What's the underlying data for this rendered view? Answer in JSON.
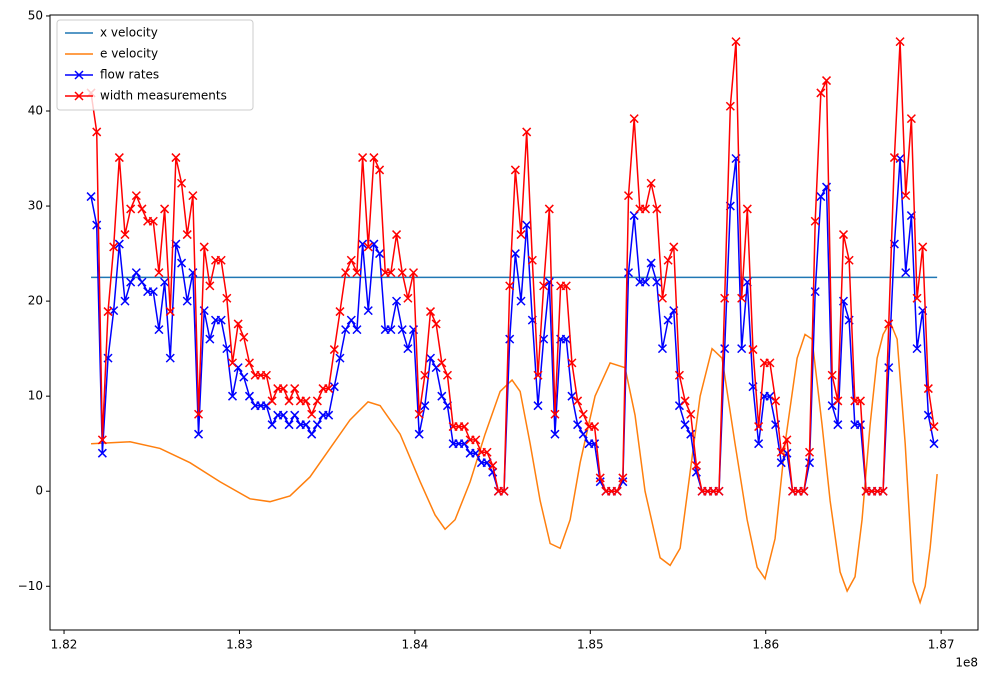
{
  "chart_data": {
    "type": "line",
    "xlim": [
      181920000,
      187210000
    ],
    "ylim": [
      -14.6,
      50.1
    ],
    "xticks": [
      {
        "value": 182000000,
        "label": "1.82"
      },
      {
        "value": 183000000,
        "label": "1.83"
      },
      {
        "value": 184000000,
        "label": "1.84"
      },
      {
        "value": 185000000,
        "label": "1.85"
      },
      {
        "value": 186000000,
        "label": "1.86"
      },
      {
        "value": 187000000,
        "label": "1.87"
      }
    ],
    "yticks": [
      {
        "value": -10,
        "label": "−10"
      },
      0,
      10,
      20,
      30,
      40,
      50
    ],
    "x_offset_text": "1e8",
    "grid": false,
    "legend": "upper left",
    "x": [
      182154000,
      182186250,
      182218500,
      182250750,
      182283000,
      182315250,
      182347500,
      182379750,
      182412000,
      182444250,
      182476500,
      182508750,
      182541000,
      182573250,
      182605500,
      182637750,
      182670000,
      182702250,
      182734500,
      182766750,
      182799000,
      182831250,
      182863500,
      182895750,
      182928000,
      182960250,
      182992500,
      183024750,
      183057000,
      183089250,
      183121500,
      183153750,
      183186000,
      183218250,
      183250500,
      183282750,
      183315000,
      183347250,
      183379500,
      183411750,
      183444000,
      183476250,
      183508500,
      183540750,
      183573000,
      183605250,
      183637500,
      183669750,
      183702000,
      183734250,
      183766500,
      183798750,
      183831000,
      183863250,
      183895500,
      183927750,
      183960000,
      183992250,
      184024500,
      184056750,
      184089000,
      184121250,
      184153500,
      184185750,
      184218000,
      184250250,
      184282500,
      184314750,
      184347000,
      184379250,
      184411500,
      184443750,
      184476000,
      184508250,
      184540500,
      184572750,
      184605000,
      184637250,
      184669500,
      184701750,
      184734000,
      184766250,
      184798500,
      184830750,
      184863000,
      184895250,
      184927500,
      184959750,
      184992000,
      185024250,
      185056500,
      185088750,
      185121000,
      185153250,
      185185500,
      185217750,
      185250000,
      185282250,
      185314500,
      185346750,
      185379000,
      185411250,
      185443500,
      185475750,
      185508000,
      185540250,
      185572500,
      185604750,
      185637000,
      185669250,
      185701500,
      185733750,
      185766000,
      185798250,
      185830500,
      185862750,
      185895000,
      185927250,
      185959500,
      185991750,
      186024000,
      186056250,
      186088500,
      186120750,
      186153000,
      186185250,
      186217500,
      186249750,
      186282000,
      186314250,
      186346500,
      186378750,
      186411000,
      186443250,
      186475500,
      186507750,
      186540000,
      186572250,
      186604500,
      186636750,
      186669000,
      186701250,
      186733500,
      186765750,
      186798000,
      186830250,
      186862500,
      186894750,
      186927000,
      186959250
    ],
    "series": [
      {
        "name": "x velocity",
        "color": "#1f77b4",
        "x": [
          182154000,
          186977000
        ],
        "values": [
          22.5,
          22.5
        ]
      },
      {
        "name": "e velocity",
        "color": "#ff7f0e",
        "x": [
          182154000,
          182376000,
          182547000,
          182718000,
          182889000,
          183060000,
          183174000,
          183288000,
          183402000,
          183516000,
          183630000,
          183733000,
          183802000,
          183916000,
          184030000,
          184115000,
          184172000,
          184229000,
          184315000,
          184400000,
          184486000,
          184554000,
          184600000,
          184657000,
          184714000,
          184771000,
          184828000,
          184885000,
          184942000,
          185027000,
          185113000,
          185198000,
          185255000,
          185312000,
          185398000,
          185455000,
          185512000,
          185569000,
          185626000,
          185694000,
          185751000,
          185825000,
          185894000,
          185951000,
          185996000,
          186053000,
          186110000,
          186179000,
          186224000,
          186264000,
          186321000,
          186367000,
          186424000,
          186464000,
          186509000,
          186549000,
          186595000,
          186635000,
          186669000,
          186709000,
          186749000,
          186795000,
          186840000,
          186880000,
          186909000,
          186937000,
          186977000
        ],
        "values": [
          5,
          5.2,
          4.5,
          3,
          1,
          -0.8,
          -1.1,
          -0.5,
          1.5,
          4.5,
          7.5,
          9.4,
          9,
          6,
          1,
          -2.5,
          -4,
          -3,
          1,
          6,
          10.5,
          11.7,
          10.5,
          5,
          -1,
          -5.5,
          -6,
          -3,
          3,
          10,
          13.5,
          13,
          8,
          0,
          -7,
          -7.8,
          -6,
          2,
          10,
          15,
          14,
          5,
          -3,
          -8,
          -9.2,
          -5,
          5,
          14,
          16.5,
          16,
          7,
          -1,
          -8.5,
          -10.5,
          -9,
          -3,
          7,
          14,
          16.5,
          17.8,
          16,
          5,
          -9.5,
          -11.7,
          -10,
          -6,
          1.8
        ]
      },
      {
        "name": "flow rates",
        "color": "#0000ff",
        "marker": "x",
        "values": [
          31,
          28,
          4,
          14,
          19,
          26,
          20,
          22,
          23,
          22,
          21,
          21,
          17,
          22,
          14,
          26,
          24,
          20,
          23,
          6,
          19,
          16,
          18,
          18,
          15,
          10,
          13,
          12,
          10,
          9,
          9,
          9,
          7,
          8,
          8,
          7,
          8,
          7,
          7,
          6,
          7,
          8,
          8,
          11,
          14,
          17,
          18,
          17,
          26,
          19,
          26,
          25,
          17,
          17,
          20,
          17,
          15,
          17,
          6,
          9,
          14,
          13,
          10,
          9,
          5,
          5,
          5,
          4,
          4,
          3,
          3,
          2,
          0,
          0,
          16,
          25,
          20,
          28,
          18,
          9,
          16,
          22,
          6,
          16,
          16,
          10,
          7,
          6,
          5,
          5,
          1,
          0,
          0,
          0,
          1,
          23,
          29,
          22,
          22,
          24,
          22,
          15,
          18,
          19,
          9,
          7,
          6,
          2,
          0,
          0,
          0,
          0,
          15,
          30,
          35,
          15,
          22,
          11,
          5,
          10,
          10,
          7,
          3,
          4,
          0,
          0,
          0,
          3,
          21,
          31,
          32,
          9,
          7,
          20,
          18,
          7,
          7,
          0,
          0,
          0,
          0,
          13,
          26,
          35,
          23,
          29,
          15,
          19,
          8,
          5
        ]
      },
      {
        "name": "width measurements",
        "color": "#ff0000",
        "marker": "x",
        "values": [
          41.9,
          37.8,
          5.4,
          18.9,
          25.7,
          35.1,
          27,
          29.7,
          31.1,
          29.7,
          28.4,
          28.4,
          23,
          29.7,
          18.9,
          35.1,
          32.4,
          27,
          31.1,
          8.1,
          25.7,
          21.6,
          24.3,
          24.3,
          20.3,
          13.5,
          17.6,
          16.2,
          13.5,
          12.2,
          12.2,
          12.2,
          9.5,
          10.8,
          10.8,
          9.5,
          10.8,
          9.5,
          9.5,
          8.1,
          9.5,
          10.8,
          10.8,
          14.9,
          18.9,
          23,
          24.3,
          23,
          35.1,
          25.7,
          35.1,
          33.8,
          23,
          23,
          27,
          23,
          20.3,
          23,
          8.1,
          12.2,
          18.9,
          17.6,
          13.5,
          12.2,
          6.8,
          6.8,
          6.8,
          5.4,
          5.4,
          4.1,
          4.1,
          2.7,
          0,
          0,
          21.6,
          33.8,
          27,
          37.8,
          24.3,
          12.2,
          21.6,
          29.7,
          8.1,
          21.6,
          21.6,
          13.5,
          9.5,
          8.1,
          6.8,
          6.8,
          1.4,
          0,
          0,
          0,
          1.4,
          31.1,
          39.2,
          29.7,
          29.7,
          32.4,
          29.7,
          20.3,
          24.3,
          25.7,
          12.2,
          9.5,
          8.1,
          2.7,
          0,
          0,
          0,
          0,
          20.3,
          40.5,
          47.3,
          20.3,
          29.7,
          14.9,
          6.8,
          13.5,
          13.5,
          9.5,
          4.1,
          5.4,
          0,
          0,
          0,
          4.1,
          28.4,
          41.9,
          43.2,
          12.2,
          9.5,
          27,
          24.3,
          9.5,
          9.5,
          0,
          0,
          0,
          0,
          17.6,
          35.1,
          47.3,
          31.1,
          39.2,
          20.3,
          25.7,
          10.8,
          6.8
        ]
      }
    ]
  }
}
